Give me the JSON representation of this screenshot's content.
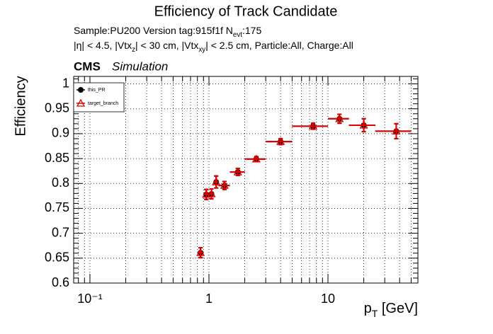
{
  "chart_data": {
    "type": "errorbar",
    "title": "Efficiency of Track Candidate",
    "info_lines": [
      [
        "Sample:PU200   Version tag:915f1f  N",
        "evt",
        ":175"
      ],
      [
        "|η| < 4.5, |Vtx",
        "z",
        "| < 30 cm, |Vtx",
        "xy",
        "| < 2.5 cm, Particle:All, Charge:All"
      ]
    ],
    "experiment": "CMS",
    "experiment_note": "Simulation",
    "x_label": [
      "p",
      "T",
      " [GeV]"
    ],
    "y_label": "Efficiency",
    "x_scale": "log",
    "grid": true,
    "xlim": [
      0.073,
      57
    ],
    "ylim": [
      0.6,
      1.015
    ],
    "xticks": [
      {
        "value": 0.1,
        "label": "10⁻¹"
      },
      1,
      10
    ],
    "xminor_ticks": [
      0.08,
      0.09,
      0.2,
      0.3,
      0.4,
      0.5,
      0.6,
      0.7,
      0.8,
      0.9,
      2,
      3,
      4,
      5,
      6,
      7,
      8,
      9,
      20,
      30,
      40,
      50
    ],
    "yticks": [
      0.6,
      0.65,
      0.7,
      0.75,
      0.8,
      0.85,
      0.9,
      0.95,
      1
    ],
    "yminor_ticks": [
      0.61,
      0.62,
      0.63,
      0.64,
      0.66,
      0.67,
      0.68,
      0.69,
      0.71,
      0.72,
      0.73,
      0.74,
      0.76,
      0.77,
      0.78,
      0.79,
      0.81,
      0.82,
      0.83,
      0.84,
      0.86,
      0.87,
      0.88,
      0.89,
      0.91,
      0.92,
      0.93,
      0.94,
      0.96,
      0.97,
      0.98,
      0.99,
      1.01
    ],
    "bins": [
      0.8,
      0.9,
      1.0,
      1.1,
      1.2,
      1.5,
      2,
      3,
      5,
      10,
      15,
      25,
      50
    ],
    "x": [
      0.85,
      0.95,
      1.05,
      1.15,
      1.35,
      1.75,
      2.5,
      4,
      7.5,
      12.5,
      20,
      37.5
    ],
    "series": [
      {
        "name": "this_PR",
        "color": "#000000",
        "marker": "circle",
        "values": [
          0.661,
          0.778,
          0.779,
          0.803,
          0.796,
          0.823,
          0.849,
          0.884,
          0.915,
          0.93,
          0.917,
          0.905
        ],
        "errors": [
          0.01,
          0.01,
          0.01,
          0.012,
          0.008,
          0.007,
          0.005,
          0.006,
          0.006,
          0.009,
          0.013,
          0.015
        ]
      },
      {
        "name": "target_branch",
        "color": "#e00000",
        "marker": "triangle",
        "values": [
          0.661,
          0.778,
          0.779,
          0.803,
          0.796,
          0.823,
          0.849,
          0.884,
          0.915,
          0.93,
          0.917,
          0.905
        ],
        "errors": [
          0.01,
          0.01,
          0.01,
          0.012,
          0.008,
          0.007,
          0.005,
          0.006,
          0.006,
          0.009,
          0.013,
          0.015
        ]
      }
    ]
  }
}
